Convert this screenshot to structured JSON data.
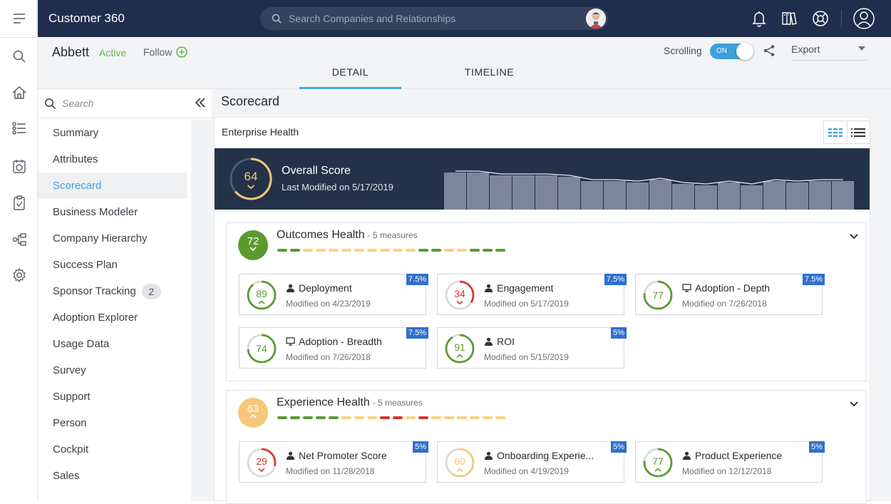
{
  "app": {
    "title": "Customer 360"
  },
  "search": {
    "placeholder": "Search Companies and Relationships"
  },
  "company": {
    "name": "Abbett",
    "status": "Active",
    "follow_label": "Follow"
  },
  "tabs": [
    {
      "label": "DETAIL",
      "active": true
    },
    {
      "label": "TIMELINE",
      "active": false
    }
  ],
  "toolbar": {
    "scrolling_label": "Scrolling",
    "toggle_state": "ON",
    "export_label": "Export"
  },
  "sidebar": {
    "search_placeholder": "Search",
    "items": [
      {
        "label": "Summary"
      },
      {
        "label": "Attributes"
      },
      {
        "label": "Scorecard",
        "active": true
      },
      {
        "label": "Business Modeler"
      },
      {
        "label": "Company Hierarchy"
      },
      {
        "label": "Success Plan"
      },
      {
        "label": "Sponsor Tracking",
        "badge": "2"
      },
      {
        "label": "Adoption Explorer"
      },
      {
        "label": "Usage Data"
      },
      {
        "label": "Survey"
      },
      {
        "label": "Support"
      },
      {
        "label": "Person"
      },
      {
        "label": "Cockpit"
      },
      {
        "label": "Sales"
      }
    ]
  },
  "scorecard": {
    "title": "Scorecard",
    "panel_title": "Enterprise Health",
    "overall": {
      "score": "64",
      "title": "Overall Score",
      "subtitle": "Last Modified on 5/17/2019",
      "trend_values": [
        66,
        66,
        64,
        64,
        64,
        63,
        60,
        60,
        59,
        61,
        58,
        57,
        59,
        57,
        60,
        59,
        60,
        60
      ]
    },
    "groups": [
      {
        "score": "72",
        "color": "#5b9a2f",
        "title": "Outcomes Health",
        "measures_label": "- 5 measures",
        "trend_colors": [
          "#5b9a2f",
          "#5b9a2f",
          "#f7d27a",
          "#f7d27a",
          "#f7d27a",
          "#f7d27a",
          "#f7d27a",
          "#f7d27a",
          "#f7d27a",
          "#f7d27a",
          "#f7d27a",
          "#5b9a2f",
          "#5b9a2f",
          "#f7d27a",
          "#f7d27a",
          "#5b9a2f",
          "#5b9a2f",
          "#5b9a2f"
        ],
        "measures": [
          {
            "score": "89",
            "level": 0.89,
            "color": "#5b9a2f",
            "icon": "person-icon",
            "name": "Deployment",
            "date": "Modified on 4/23/2019",
            "weight": "7.5%",
            "trend": "up"
          },
          {
            "score": "34",
            "level": 0.34,
            "color": "#d9362b",
            "icon": "person-icon",
            "name": "Engagement",
            "date": "Modified on 5/17/2019",
            "weight": "7.5%",
            "trend": "down"
          },
          {
            "score": "77",
            "level": 0.77,
            "color": "#5b9a2f",
            "icon": "monitor-icon",
            "name": "Adoption - Depth",
            "date": "Modified on 7/26/2018",
            "weight": "7.5%",
            "trend": ""
          },
          {
            "score": "74",
            "level": 0.74,
            "color": "#5b9a2f",
            "icon": "monitor-icon",
            "name": "Adoption - Breadth",
            "date": "Modified on 7/26/2018",
            "weight": "7.5%",
            "trend": ""
          },
          {
            "score": "91",
            "level": 0.91,
            "color": "#5b9a2f",
            "icon": "person-icon",
            "name": "ROI",
            "date": "Modified on 5/15/2019",
            "weight": "5%",
            "trend": "up"
          }
        ]
      },
      {
        "score": "63",
        "color": "#f7c77a",
        "title": "Experience Health",
        "measures_label": "- 5 measures",
        "trend_colors": [
          "#5b9a2f",
          "#5b9a2f",
          "#5b9a2f",
          "#5b9a2f",
          "#5b9a2f",
          "#f7d27a",
          "#f7d27a",
          "#f7d27a",
          "#d9362b",
          "#d9362b",
          "#f7d27a",
          "#d9362b",
          "#f7d27a",
          "#f7d27a",
          "#f7d27a",
          "#f7d27a",
          "#f7d27a",
          "#f7d27a"
        ],
        "measures": [
          {
            "score": "29",
            "level": 0.29,
            "color": "#d9362b",
            "icon": "person-icon",
            "name": "Net Promoter Score",
            "date": "Modified on 11/28/2018",
            "weight": "5%",
            "trend": "down"
          },
          {
            "score": "60",
            "level": 0.6,
            "color": "#f7c77a",
            "icon": "person-icon",
            "name": "Onboarding Experie...",
            "date": "Modified on 4/19/2019",
            "weight": "5%",
            "trend": "up"
          },
          {
            "score": "77",
            "level": 0.77,
            "color": "#5b9a2f",
            "icon": "person-icon",
            "name": "Product Experience",
            "date": "Modified on 12/12/2018",
            "weight": "5%",
            "trend": "up"
          }
        ]
      }
    ]
  }
}
